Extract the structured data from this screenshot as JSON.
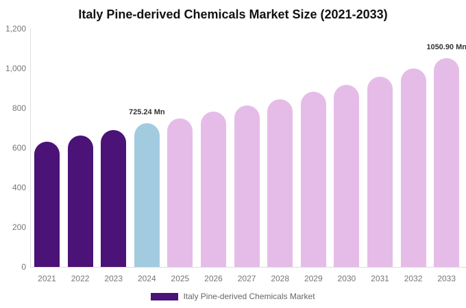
{
  "title": "Italy Pine-derived Chemicals Market Size (2021-2033)",
  "chart_data": {
    "type": "bar",
    "title": "Italy Pine-derived Chemicals Market Size (2021-2033)",
    "xlabel": "",
    "ylabel": "",
    "categories": [
      "2021",
      "2022",
      "2023",
      "2024",
      "2025",
      "2026",
      "2027",
      "2028",
      "2029",
      "2030",
      "2031",
      "2032",
      "2033"
    ],
    "values": [
      632,
      661,
      688,
      725.24,
      749,
      783,
      814,
      846,
      882,
      918,
      958,
      999,
      1050.9
    ],
    "ylim": [
      0,
      1200
    ],
    "yticks": [
      0,
      200,
      400,
      600,
      800,
      1000,
      1200
    ],
    "ytick_labels": [
      "0",
      "200",
      "400",
      "600",
      "800",
      "1,000",
      "1,200"
    ],
    "grid": false,
    "legend_position": "bottom",
    "legend": [
      "Italy Pine-derived Chemicals Market"
    ],
    "bar_segments": [
      "historical",
      "historical",
      "historical",
      "current",
      "forecast",
      "forecast",
      "forecast",
      "forecast",
      "forecast",
      "forecast",
      "forecast",
      "forecast",
      "forecast"
    ],
    "colors": {
      "historical": "#4B1277",
      "current": "#A3CBE0",
      "forecast": "#E5BCE8",
      "axis_line": "#DDDDDD",
      "tick_text": "#757575",
      "annotation_text": "#333333"
    },
    "annotations": [
      {
        "year": "2024",
        "label": "725.24 Mn"
      },
      {
        "year": "2033",
        "label": "1050.90 Mn"
      }
    ]
  }
}
